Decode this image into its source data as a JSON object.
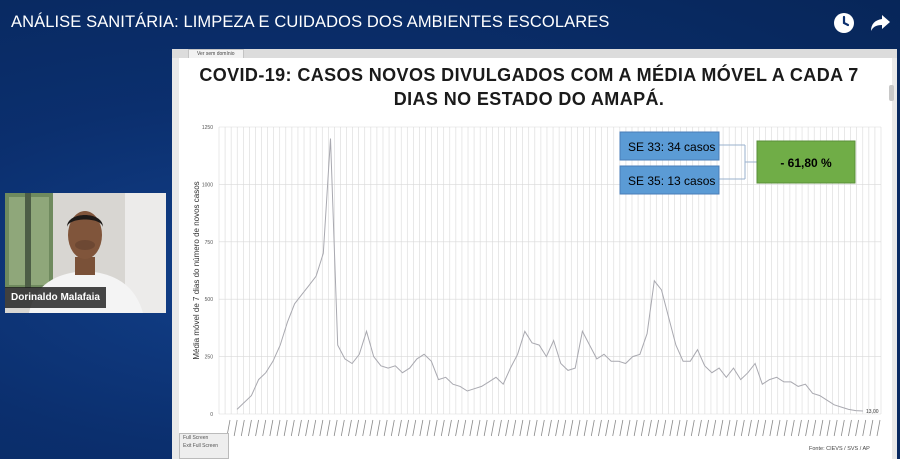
{
  "header": {
    "title": "ANÁLISE SANITÁRIA: LIMPEZA E CUIDADOS DOS AMBIENTES ESCOLARES",
    "icons": [
      "clock-icon",
      "share-icon"
    ]
  },
  "webcam": {
    "participant_name": "Dorinaldo Malafaia"
  },
  "browser": {
    "tab_label": "Ver sem domínio"
  },
  "fullscreen": {
    "btn1": "Full Screen",
    "btn2": "Exit Full Screen"
  },
  "slide": {
    "title_line1": "COVID-19: CASOS NOVOS DIVULGADOS COM A MÉDIA MÓVEL A CADA 7",
    "title_line2": "DIAS NO ESTADO DO AMAPÁ.",
    "box_se33": "SE 33: 34 casos",
    "box_se35": "SE 35: 13 casos",
    "box_change": "- 61,80 %",
    "source": "Fonte: CIEVS / SVS / AP",
    "colors": {
      "box_blue": "#5b9bd5",
      "box_green": "#70ad47",
      "line": "#a9a9b0",
      "grid": "#d9d9d9"
    }
  },
  "chart_data": {
    "type": "line",
    "title": "COVID-19: CASOS NOVOS DIVULGADOS COM A MÉDIA MÓVEL A CADA 7 DIAS NO ESTADO DO AMAPÁ.",
    "ylabel": "Média móvel de 7 dias do número de novos casos",
    "xlabel": "",
    "ylim": [
      0,
      1250
    ],
    "yticks": [
      0,
      250,
      500,
      750,
      1000,
      1250
    ],
    "grid": true,
    "end_label": "13,00",
    "series": [
      {
        "values": [
          20,
          50,
          80,
          150,
          180,
          230,
          300,
          400,
          480,
          520,
          560,
          600,
          700,
          1200,
          300,
          240,
          220,
          260,
          360,
          250,
          210,
          200,
          210,
          180,
          200,
          240,
          260,
          230,
          150,
          160,
          130,
          120,
          100,
          110,
          120,
          140,
          160,
          130,
          200,
          260,
          360,
          310,
          300,
          250,
          320,
          220,
          190,
          200,
          360,
          300,
          240,
          260,
          230,
          230,
          220,
          250,
          260,
          350,
          580,
          540,
          420,
          300,
          230,
          230,
          280,
          210,
          180,
          200,
          160,
          200,
          150,
          180,
          220,
          130,
          150,
          160,
          140,
          140,
          120,
          130,
          90,
          80,
          60,
          40,
          30,
          20,
          15,
          13
        ]
      }
    ]
  }
}
